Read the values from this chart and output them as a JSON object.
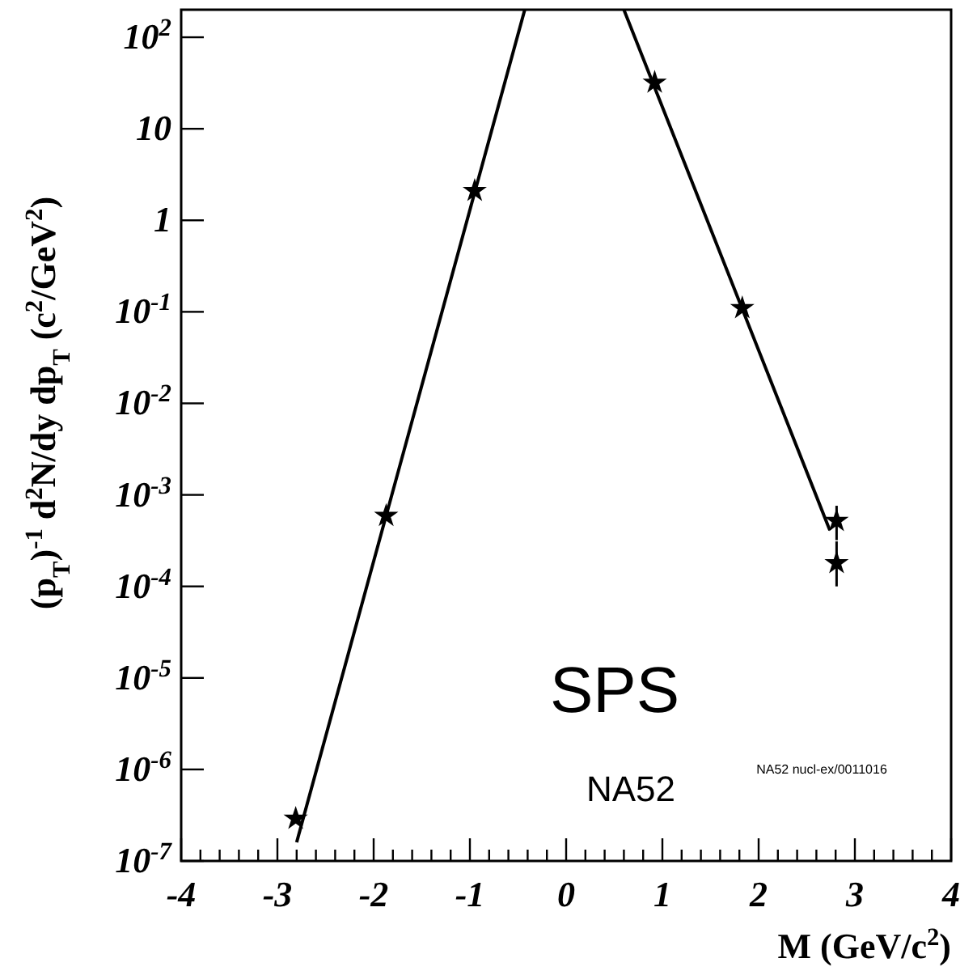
{
  "chart_data": {
    "type": "scatter",
    "xlabel": "M (GeV/c$^{2}$)",
    "ylabel": "(p$_{T}$)$^{-1}$ d$^{2}$N/dy dp$_{T}$ (c$^{2}$/GeV$^{2}$)",
    "annotations": [
      "SPS",
      "NA52",
      "NA52 nucl-ex/0011016"
    ],
    "log": "y",
    "line_style": "solid",
    "grid": false,
    "xlim": [
      -4,
      4
    ],
    "ylim": [
      1e-07,
      200
    ],
    "xticks": [
      -4,
      {
        "value": -3.8,
        "label": null
      },
      {
        "value": -3.6,
        "label": null
      },
      {
        "value": -3.4,
        "label": null
      },
      {
        "value": -3.2,
        "label": null
      },
      -3,
      {
        "value": -2.8,
        "label": null
      },
      {
        "value": -2.6,
        "label": null
      },
      {
        "value": -2.4,
        "label": null
      },
      {
        "value": -2.2,
        "label": null
      },
      -2,
      {
        "value": -1.8,
        "label": null
      },
      {
        "value": -1.6,
        "label": null
      },
      {
        "value": -1.4,
        "label": null
      },
      {
        "value": -1.2,
        "label": null
      },
      -1,
      {
        "value": -0.8,
        "label": null
      },
      {
        "value": -0.6,
        "label": null
      },
      {
        "value": -0.4,
        "label": null
      },
      {
        "value": -0.2,
        "label": null
      },
      0,
      {
        "value": 0.2,
        "label": null
      },
      {
        "value": 0.4,
        "label": null
      },
      {
        "value": 0.6,
        "label": null
      },
      {
        "value": 0.8,
        "label": null
      },
      1,
      {
        "value": 1.2,
        "label": null
      },
      {
        "value": 1.4,
        "label": null
      },
      {
        "value": 1.6,
        "label": null
      },
      {
        "value": 1.8,
        "label": null
      },
      2,
      {
        "value": 2.2,
        "label": null
      },
      {
        "value": 2.4,
        "label": null
      },
      {
        "value": 2.6,
        "label": null
      },
      {
        "value": 2.8,
        "label": null
      },
      3,
      {
        "value": 3.2,
        "label": null
      },
      {
        "value": 3.4,
        "label": null
      },
      {
        "value": 3.6,
        "label": null
      },
      {
        "value": 3.8,
        "label": null
      },
      4
    ],
    "yticks": [
      {
        "value": 1e-07,
        "label": "10$^{-7}$"
      },
      {
        "value": 1e-06,
        "label": "10$^{-6}$"
      },
      {
        "value": 1e-05,
        "label": "10$^{-5}$"
      },
      {
        "value": 0.0001,
        "label": "10$^{-4}$"
      },
      {
        "value": 0.001,
        "label": "10$^{-3}$"
      },
      {
        "value": 0.01,
        "label": "10$^{-2}$"
      },
      {
        "value": 0.1,
        "label": "10$^{-1}$"
      },
      1,
      10,
      {
        "value": 100,
        "label": "10$^{2}$"
      }
    ],
    "series": [
      {
        "marker": "star",
        "color": "#000000",
        "x": [
          -2.81,
          -1.87,
          -0.95,
          0.92,
          1.83,
          2.81,
          2.81
        ],
        "values": [
          2.9e-07,
          0.00059,
          2.1,
          32,
          0.11,
          0.00052,
          0.00018
        ],
        "errors": [
          null,
          null,
          null,
          null,
          null,
          [
            0.00032,
            0.00076
          ],
          [
            0.0001,
            0.00031
          ]
        ]
      },
      {
        "type": "line",
        "marker": "none",
        "color": "#000000",
        "x": [
          -2.8,
          -0.43
        ],
        "values": [
          1.6e-07,
          200
        ]
      },
      {
        "type": "line",
        "marker": "none",
        "color": "#000000",
        "x": [
          0.6,
          2.74
        ],
        "values": [
          200,
          0.00041
        ]
      }
    ]
  }
}
